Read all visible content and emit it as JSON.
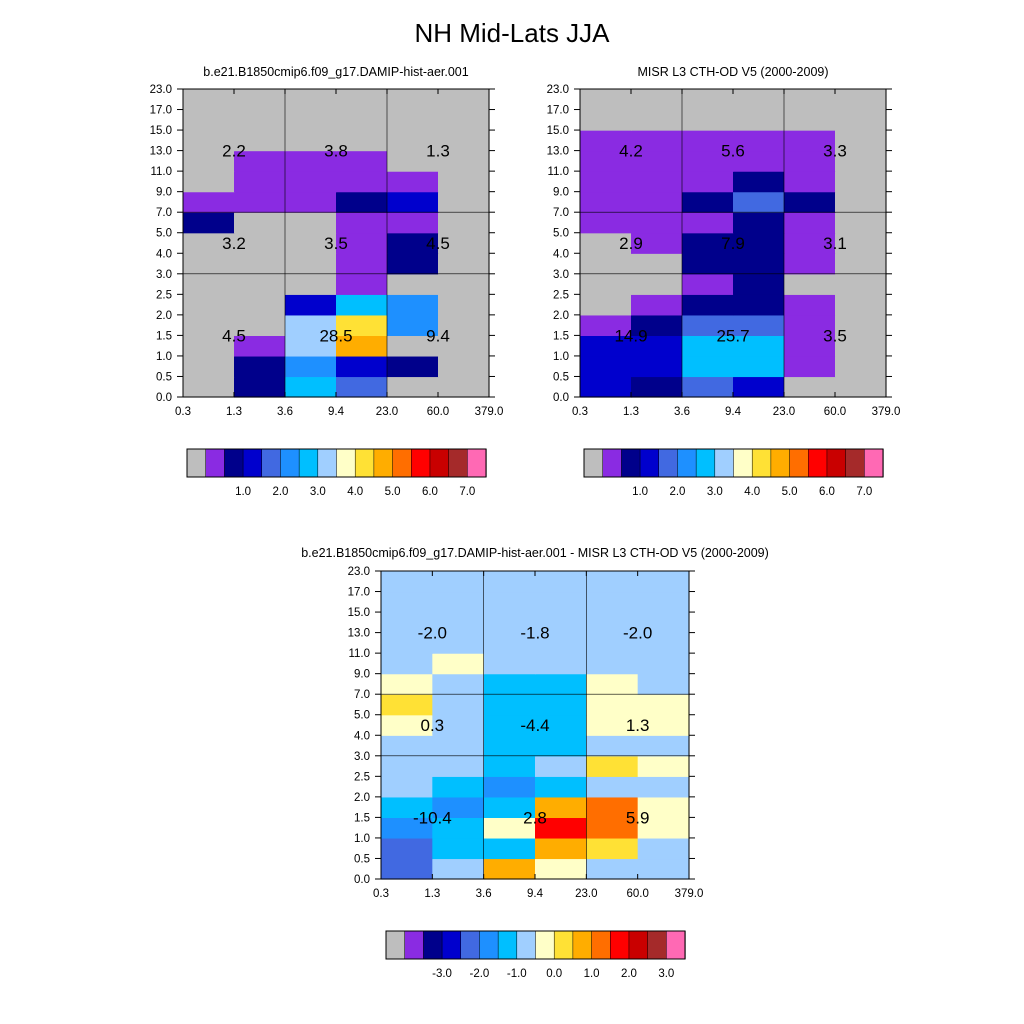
{
  "figure": {
    "title": "NH Mid-Lats JJA"
  },
  "colors": {
    "abs_palette": [
      "#bebebe",
      "#8a2be2",
      "#00008b",
      "#0000cd",
      "#4169e1",
      "#1e90ff",
      "#00bfff",
      "#a0cfff",
      "#ffffc8",
      "#ffe135",
      "#ffad00",
      "#ff6e00",
      "#ff0000",
      "#c90000",
      "#a52a2a",
      "#ff69b4"
    ],
    "diff_palette": [
      "#bebebe",
      "#8a2be2",
      "#00008b",
      "#0000cd",
      "#4169e1",
      "#1e90ff",
      "#00bfff",
      "#a0cfff",
      "#ffffc8",
      "#ffe135",
      "#ffad00",
      "#ff6e00",
      "#ff0000",
      "#c90000",
      "#a52a2a",
      "#ff69b4"
    ]
  },
  "chart_data": [
    {
      "type": "heatmap",
      "title": "b.e21.B1850cmip6.f09_g17.DAMIP-hist-aer.001",
      "x_ticks": [
        "0.3",
        "1.3",
        "3.6",
        "9.4",
        "23.0",
        "60.0",
        "379.0"
      ],
      "y_ticks": [
        "0.0",
        "0.5",
        "1.0",
        "1.5",
        "2.0",
        "2.5",
        "3.0",
        "4.0",
        "5.0",
        "7.0",
        "9.0",
        "11.0",
        "13.0",
        "15.0",
        "17.0",
        "23.0"
      ],
      "colorbar": {
        "palette": "abs_palette",
        "labels": [
          "1.0",
          "2.0",
          "3.0",
          "4.0",
          "5.0",
          "6.0",
          "7.0"
        ]
      },
      "grid_color_index": [
        [
          0,
          2,
          6,
          4,
          0,
          0
        ],
        [
          0,
          2,
          5,
          3,
          2,
          0
        ],
        [
          0,
          1,
          7,
          10,
          0,
          0
        ],
        [
          0,
          0,
          7,
          9,
          5,
          0
        ],
        [
          0,
          0,
          3,
          6,
          5,
          0
        ],
        [
          0,
          0,
          0,
          1,
          0,
          0
        ],
        [
          0,
          0,
          0,
          1,
          2,
          0
        ],
        [
          0,
          0,
          0,
          1,
          2,
          0
        ],
        [
          2,
          0,
          0,
          1,
          1,
          0
        ],
        [
          1,
          1,
          1,
          2,
          3,
          0
        ],
        [
          0,
          1,
          1,
          1,
          1,
          0
        ],
        [
          0,
          1,
          1,
          1,
          0,
          0
        ],
        [
          0,
          0,
          0,
          0,
          0,
          0
        ],
        [
          0,
          0,
          0,
          0,
          0,
          0
        ],
        [
          0,
          0,
          0,
          0,
          0,
          0
        ]
      ],
      "annotations": [
        {
          "col": 0,
          "row": 0,
          "text": "4.5"
        },
        {
          "col": 1,
          "row": 0,
          "text": "28.5"
        },
        {
          "col": 2,
          "row": 0,
          "text": "9.4"
        },
        {
          "col": 0,
          "row": 1,
          "text": "3.2"
        },
        {
          "col": 1,
          "row": 1,
          "text": "3.5"
        },
        {
          "col": 2,
          "row": 1,
          "text": "4.5"
        },
        {
          "col": 0,
          "row": 2,
          "text": "2.2"
        },
        {
          "col": 1,
          "row": 2,
          "text": "3.8"
        },
        {
          "col": 2,
          "row": 2,
          "text": "1.3"
        }
      ]
    },
    {
      "type": "heatmap",
      "title": "MISR L3 CTH-OD V5 (2000-2009)",
      "x_ticks": [
        "0.3",
        "1.3",
        "3.6",
        "9.4",
        "23.0",
        "60.0",
        "379.0"
      ],
      "y_ticks": [
        "0.0",
        "0.5",
        "1.0",
        "1.5",
        "2.0",
        "2.5",
        "3.0",
        "4.0",
        "5.0",
        "7.0",
        "9.0",
        "11.0",
        "13.0",
        "15.0",
        "17.0",
        "23.0"
      ],
      "colorbar": {
        "palette": "abs_palette",
        "labels": [
          "1.0",
          "2.0",
          "3.0",
          "4.0",
          "5.0",
          "6.0",
          "7.0"
        ]
      },
      "grid_color_index": [
        [
          3,
          2,
          4,
          3,
          0,
          0
        ],
        [
          3,
          3,
          6,
          6,
          1,
          0
        ],
        [
          3,
          3,
          6,
          6,
          1,
          0
        ],
        [
          1,
          2,
          4,
          4,
          1,
          0
        ],
        [
          0,
          1,
          2,
          2,
          1,
          0
        ],
        [
          0,
          0,
          1,
          2,
          0,
          0
        ],
        [
          0,
          0,
          2,
          2,
          1,
          0
        ],
        [
          0,
          1,
          2,
          2,
          1,
          0
        ],
        [
          1,
          1,
          1,
          2,
          1,
          0
        ],
        [
          1,
          1,
          2,
          4,
          2,
          0
        ],
        [
          1,
          1,
          1,
          2,
          1,
          0
        ],
        [
          1,
          1,
          1,
          1,
          1,
          0
        ],
        [
          1,
          1,
          1,
          1,
          1,
          0
        ],
        [
          0,
          0,
          0,
          0,
          0,
          0
        ],
        [
          0,
          0,
          0,
          0,
          0,
          0
        ]
      ],
      "annotations": [
        {
          "col": 0,
          "row": 0,
          "text": "14.9"
        },
        {
          "col": 1,
          "row": 0,
          "text": "25.7"
        },
        {
          "col": 2,
          "row": 0,
          "text": "3.5"
        },
        {
          "col": 0,
          "row": 1,
          "text": "2.9"
        },
        {
          "col": 1,
          "row": 1,
          "text": "7.9"
        },
        {
          "col": 2,
          "row": 1,
          "text": "3.1"
        },
        {
          "col": 0,
          "row": 2,
          "text": "4.2"
        },
        {
          "col": 1,
          "row": 2,
          "text": "5.6"
        },
        {
          "col": 2,
          "row": 2,
          "text": "3.3"
        }
      ]
    },
    {
      "type": "heatmap",
      "title": "b.e21.B1850cmip6.f09_g17.DAMIP-hist-aer.001 - MISR L3 CTH-OD V5 (2000-2009)",
      "x_ticks": [
        "0.3",
        "1.3",
        "3.6",
        "9.4",
        "23.0",
        "60.0",
        "379.0"
      ],
      "y_ticks": [
        "0.0",
        "0.5",
        "1.0",
        "1.5",
        "2.0",
        "2.5",
        "3.0",
        "4.0",
        "5.0",
        "7.0",
        "9.0",
        "11.0",
        "13.0",
        "15.0",
        "17.0",
        "23.0"
      ],
      "colorbar": {
        "palette": "diff_palette",
        "labels": [
          "-3.0",
          "-2.0",
          "-1.0",
          "0.0",
          "1.0",
          "2.0",
          "3.0"
        ]
      },
      "grid_color_index": [
        [
          4,
          7,
          10,
          8,
          7,
          7
        ],
        [
          4,
          6,
          6,
          10,
          9,
          7
        ],
        [
          5,
          6,
          8,
          12,
          11,
          8
        ],
        [
          6,
          5,
          6,
          10,
          11,
          8
        ],
        [
          7,
          6,
          5,
          6,
          7,
          7
        ],
        [
          7,
          7,
          6,
          7,
          9,
          8
        ],
        [
          7,
          7,
          6,
          6,
          7,
          7
        ],
        [
          8,
          7,
          6,
          6,
          8,
          8
        ],
        [
          9,
          7,
          6,
          6,
          8,
          8
        ],
        [
          8,
          7,
          6,
          6,
          8,
          7
        ],
        [
          7,
          8,
          7,
          7,
          7,
          7
        ],
        [
          7,
          7,
          7,
          7,
          7,
          7
        ],
        [
          7,
          7,
          7,
          7,
          7,
          7
        ],
        [
          7,
          7,
          7,
          7,
          7,
          7
        ],
        [
          7,
          7,
          7,
          7,
          7,
          7
        ]
      ],
      "annotations": [
        {
          "col": 0,
          "row": 0,
          "text": "-10.4"
        },
        {
          "col": 1,
          "row": 0,
          "text": "2.8"
        },
        {
          "col": 2,
          "row": 0,
          "text": "5.9"
        },
        {
          "col": 0,
          "row": 1,
          "text": "0.3"
        },
        {
          "col": 1,
          "row": 1,
          "text": "-4.4"
        },
        {
          "col": 2,
          "row": 1,
          "text": "1.3"
        },
        {
          "col": 0,
          "row": 2,
          "text": "-2.0"
        },
        {
          "col": 1,
          "row": 2,
          "text": "-1.8"
        },
        {
          "col": 2,
          "row": 2,
          "text": "-2.0"
        }
      ]
    }
  ]
}
